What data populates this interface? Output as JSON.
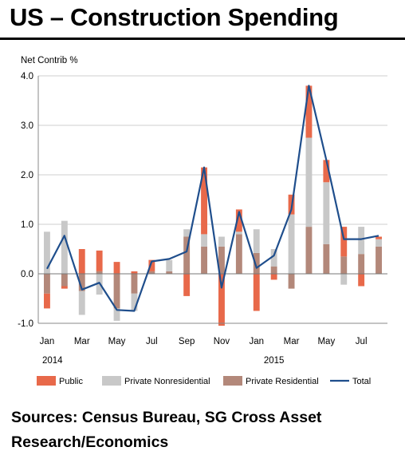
{
  "title": "US – Construction Spending",
  "source": "Sources: Census Bureau, SG Cross Asset Research/Economics",
  "chart_data": {
    "type": "bar",
    "stacked": true,
    "title": "US – Construction Spending",
    "ylabel": "Net Contrib %",
    "xlabel": "",
    "ylim": [
      -1.0,
      4.0
    ],
    "yticks": [
      4.0,
      3.0,
      2.0,
      1.0,
      0.0,
      -1.0
    ],
    "ytick_labels": [
      "4.0",
      "3.0",
      "2.0",
      "1.0",
      "0.0",
      "-1.0"
    ],
    "grid": true,
    "legend_position": "bottom",
    "categories": [
      "Jan 2014",
      "Feb 2014",
      "Mar 2014",
      "Apr 2014",
      "May 2014",
      "Jun 2014",
      "Jul 2014",
      "Aug 2014",
      "Sep 2014",
      "Oct 2014",
      "Nov 2014",
      "Dec 2014",
      "Jan 2015",
      "Feb 2015",
      "Mar 2015",
      "Apr 2015",
      "May 2015",
      "Jun 2015",
      "Jul 2015",
      "Aug 2015"
    ],
    "x_tick_labels": [
      {
        "index": 0,
        "label": "Jan"
      },
      {
        "index": 2,
        "label": "Mar"
      },
      {
        "index": 4,
        "label": "May"
      },
      {
        "index": 6,
        "label": "Jul"
      },
      {
        "index": 8,
        "label": "Sep"
      },
      {
        "index": 10,
        "label": "Nov"
      },
      {
        "index": 12,
        "label": "Jan"
      },
      {
        "index": 14,
        "label": "Mar"
      },
      {
        "index": 16,
        "label": "May"
      },
      {
        "index": 18,
        "label": "Jul"
      }
    ],
    "year_labels": [
      {
        "index": 0,
        "label": "2014"
      },
      {
        "index": 13,
        "label": "2015"
      }
    ],
    "series": [
      {
        "name": "Private Residential",
        "kind": "bar",
        "color": "#b3887a",
        "values": [
          -0.4,
          -0.25,
          -0.35,
          0.05,
          -0.7,
          -0.4,
          0.05,
          0.05,
          0.75,
          0.55,
          0.55,
          0.8,
          0.42,
          0.15,
          -0.3,
          0.95,
          0.6,
          0.35,
          0.4,
          0.55
        ]
      },
      {
        "name": "Private Nonresidential",
        "kind": "bar",
        "color": "#c8c8c8",
        "values": [
          0.85,
          1.07,
          -0.48,
          -0.42,
          -0.25,
          -0.35,
          0.0,
          0.23,
          0.15,
          0.25,
          0.2,
          0.05,
          0.48,
          0.35,
          1.2,
          1.8,
          1.25,
          -0.22,
          0.55,
          0.15
        ]
      },
      {
        "name": "Public",
        "kind": "bar",
        "color": "#e8694a",
        "values": [
          -0.3,
          -0.05,
          0.5,
          0.42,
          0.24,
          0.05,
          0.23,
          0.0,
          -0.45,
          1.35,
          -1.05,
          0.45,
          -0.75,
          -0.12,
          0.4,
          1.05,
          0.45,
          0.6,
          -0.25,
          0.05
        ]
      },
      {
        "name": "Total",
        "kind": "line",
        "color": "#1f4e8c",
        "values": [
          0.1,
          0.77,
          -0.32,
          -0.18,
          -0.73,
          -0.75,
          0.25,
          0.3,
          0.45,
          2.15,
          -0.28,
          1.25,
          0.12,
          0.37,
          1.3,
          3.8,
          2.3,
          0.7,
          0.7,
          0.77
        ]
      }
    ],
    "legend": [
      "Public",
      "Private Nonresidential",
      "Private Residential",
      "Total"
    ]
  }
}
